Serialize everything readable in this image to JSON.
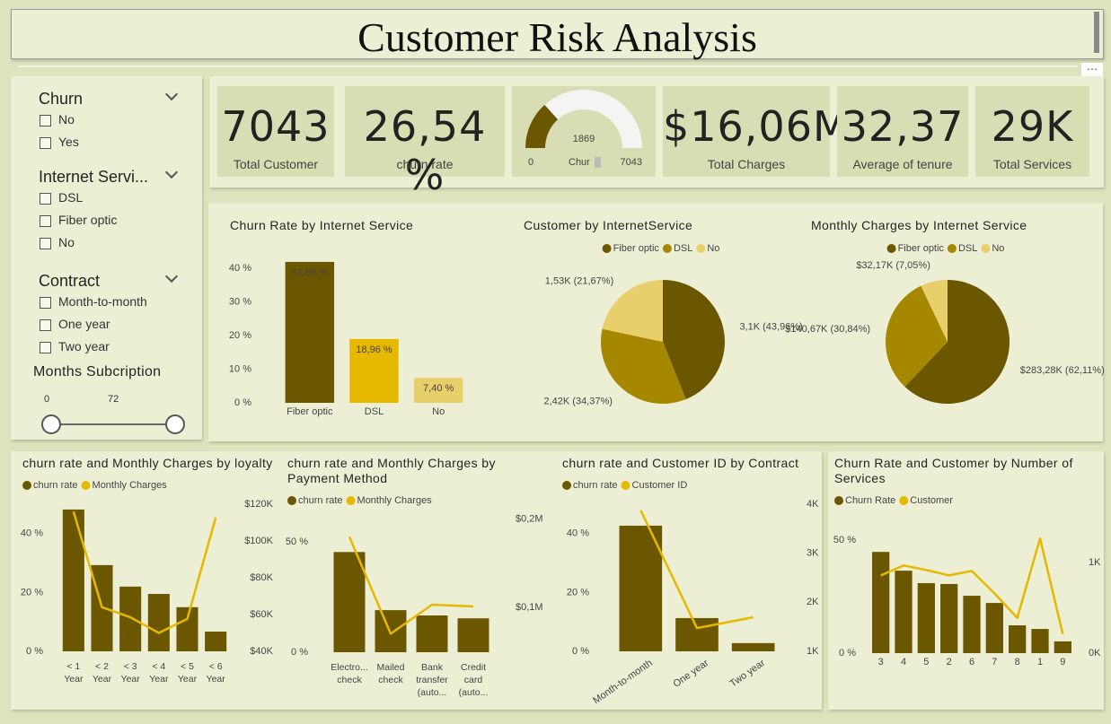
{
  "header": {
    "title": "Customer Risk Analysis"
  },
  "slicers": [
    {
      "title": "Churn",
      "options": [
        "No",
        "Yes"
      ]
    },
    {
      "title": "Internet Servi...",
      "options": [
        "DSL",
        "Fiber optic",
        "No"
      ]
    },
    {
      "title": "Contract",
      "options": [
        "Month-to-month",
        "One year",
        "Two year"
      ]
    }
  ],
  "range_slicer": {
    "title": "Months Subcription",
    "min": 0,
    "max": 72
  },
  "cards": [
    {
      "value": "7043",
      "label": "Total Customer"
    },
    {
      "value": "26,54 %",
      "label": "churn rate"
    },
    {
      "value": "$16,06M",
      "label": "Total Charges"
    },
    {
      "value": "32,37",
      "label": "Average of tenure"
    },
    {
      "value": "29K",
      "label": "Total Services"
    }
  ],
  "chart_data": [
    {
      "type": "gauge",
      "label": "Chur",
      "value": 1869,
      "ylim": [
        0,
        7043
      ],
      "color": "#6b5700"
    },
    {
      "type": "bar",
      "title": "Churn Rate by Internet Service",
      "categories": [
        "Fiber optic",
        "DSL",
        "No"
      ],
      "values": [
        41.89,
        18.96,
        7.4
      ],
      "value_labels": [
        "41,89 %",
        "18,96 %",
        "7,40 %"
      ],
      "colors": [
        "#6b5700",
        "#e6b800",
        "#e8cf6b"
      ],
      "ylim": [
        0,
        44
      ],
      "yticks": [
        {
          "value": 0,
          "label": "0 %"
        },
        {
          "value": 10,
          "label": "10 %"
        },
        {
          "value": 20,
          "label": "20 %"
        },
        {
          "value": 30,
          "label": "30 %"
        },
        {
          "value": 40,
          "label": "40 %"
        }
      ]
    },
    {
      "type": "pie",
      "title": "Customer by InternetService",
      "categories": [
        "Fiber optic",
        "DSL",
        "No"
      ],
      "values": [
        3096,
        2421,
        1526
      ],
      "value_labels": [
        "3,1K (43,96%)",
        "2,42K (34,37%)",
        "1,53K (21,67%)"
      ],
      "colors": [
        "#6b5700",
        "#a68700",
        "#e8cf6b"
      ]
    },
    {
      "type": "pie",
      "title": "Monthly Charges by Internet Service",
      "categories": [
        "Fiber optic",
        "DSL",
        "No"
      ],
      "values": [
        283280,
        140670,
        32170
      ],
      "value_labels": [
        "$283,28K (62,11%)",
        "$140,67K (30,84%)",
        "$32,17K (7,05%)"
      ],
      "colors": [
        "#6b5700",
        "#a68700",
        "#e8cf6b"
      ]
    },
    {
      "type": "combo",
      "title": "churn rate and Monthly Charges by loyalty",
      "categories": [
        "< 1 Year",
        "< 2 Year",
        "< 3 Year",
        "< 4 Year",
        "< 5 Year",
        "< 6 Year"
      ],
      "series": [
        {
          "name": "churn rate",
          "type": "bar",
          "color": "#6b5700",
          "values": [
            48.2,
            29.3,
            22,
            19.5,
            15,
            6.7
          ]
        },
        {
          "name": "Monthly Charges",
          "type": "line",
          "axis": "y2",
          "color": "#e6b800",
          "values": [
            116000,
            64000,
            58500,
            50000,
            57600,
            112700
          ]
        }
      ],
      "ylim": [
        0,
        50
      ],
      "yticks": [
        {
          "value": 0,
          "label": "0 %"
        },
        {
          "value": 20,
          "label": "20 %"
        },
        {
          "value": 40,
          "label": "40 %"
        }
      ],
      "y2lim": [
        40000,
        120000
      ],
      "y2ticks": [
        {
          "value": 40000,
          "label": "$40K"
        },
        {
          "value": 60000,
          "label": "$60K"
        },
        {
          "value": 80000,
          "label": "$80K"
        },
        {
          "value": 100000,
          "label": "$100K"
        },
        {
          "value": 120000,
          "label": "$120K"
        }
      ]
    },
    {
      "type": "combo",
      "title": "churn rate and Monthly Charges by Payment Method",
      "categories": [
        "Electro... check",
        "Mailed check",
        "Bank transfer (auto...",
        "Credit card (auto..."
      ],
      "series": [
        {
          "name": "churn rate",
          "type": "bar",
          "color": "#6b5700",
          "values": [
            45.5,
            19.1,
            16.7,
            15.4
          ]
        },
        {
          "name": "Monthly Charges",
          "type": "line",
          "axis": "y2",
          "color": "#e6b800",
          "values": [
            180000,
            70000,
            103000,
            101000
          ]
        }
      ],
      "ylim": [
        0,
        66
      ],
      "yticks": [
        {
          "value": 0,
          "label": "0 %"
        },
        {
          "value": 50,
          "label": "50 %"
        }
      ],
      "y2lim": [
        49000,
        214000
      ],
      "y2ticks": [
        {
          "value": 100000,
          "label": "$0,1M"
        },
        {
          "value": 200000,
          "label": "$0,2M"
        }
      ]
    },
    {
      "type": "combo",
      "title": "churn rate and Customer ID by Contract",
      "categories": [
        "Month-to-month",
        "One year",
        "Two year"
      ],
      "series": [
        {
          "name": "churn rate",
          "type": "bar",
          "color": "#6b5700",
          "values": [
            42.7,
            11.3,
            2.8
          ]
        },
        {
          "name": "Customer ID",
          "type": "line",
          "axis": "y2",
          "color": "#e6b800",
          "values": [
            3875,
            1473,
            1695
          ]
        }
      ],
      "ylim": [
        0,
        50
      ],
      "yticks": [
        {
          "value": 0,
          "label": "0 %"
        },
        {
          "value": 20,
          "label": "20 %"
        },
        {
          "value": 40,
          "label": "40 %"
        }
      ],
      "y2lim": [
        1000,
        4000
      ],
      "y2ticks": [
        {
          "value": 1000,
          "label": "1K"
        },
        {
          "value": 2000,
          "label": "2K"
        },
        {
          "value": 3000,
          "label": "3K"
        },
        {
          "value": 4000,
          "label": "4K"
        }
      ]
    },
    {
      "type": "combo",
      "title": "Churn Rate and Customer by Number of Services",
      "categories": [
        "3",
        "4",
        "5",
        "2",
        "6",
        "7",
        "8",
        "1",
        "9"
      ],
      "series": [
        {
          "name": "Churn Rate",
          "type": "bar",
          "color": "#6b5700",
          "values": [
            44.8,
            36.5,
            31,
            30.6,
            25.4,
            22.2,
            12.3,
            10.7,
            5.2
          ]
        },
        {
          "name": "Customer",
          "type": "line",
          "axis": "y2",
          "color": "#e6b800",
          "values": [
            860,
            970,
            920,
            860,
            910,
            660,
            390,
            1270,
            210
          ]
        }
      ],
      "ylim": [
        0,
        56
      ],
      "yticks": [
        {
          "value": 0,
          "label": "0 %"
        },
        {
          "value": 50,
          "label": "50 %"
        }
      ],
      "y2lim": [
        0,
        1400
      ],
      "y2ticks": [
        {
          "value": 0,
          "label": "0K"
        },
        {
          "value": 1000,
          "label": "1K"
        }
      ]
    }
  ]
}
